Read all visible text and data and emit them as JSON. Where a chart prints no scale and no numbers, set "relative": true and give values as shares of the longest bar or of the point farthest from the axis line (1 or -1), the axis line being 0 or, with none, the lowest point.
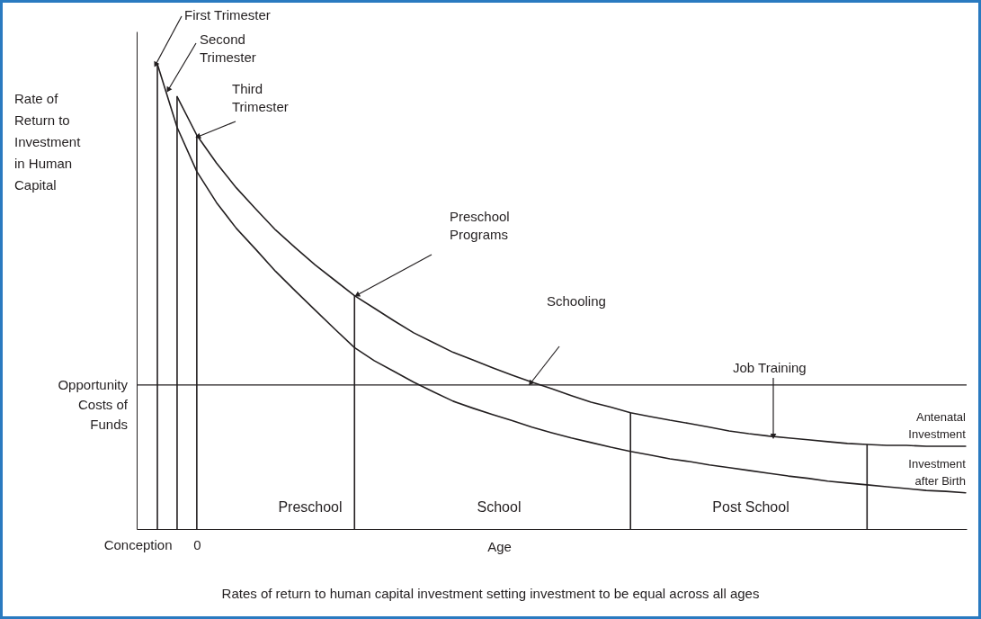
{
  "chart_data": {
    "type": "line",
    "relative": true,
    "ylabel": "Rate of Return to Investment in Human Capital",
    "xlabel": "Age",
    "marker": "none",
    "line_style": "solid",
    "grid": false,
    "categories": [
      "Conception",
      null,
      null,
      "0",
      null,
      null,
      null,
      null,
      null,
      null,
      null,
      null,
      null,
      null,
      null,
      null,
      null,
      null,
      null,
      null,
      null,
      null,
      null,
      null,
      null,
      null,
      null,
      null,
      null,
      null,
      null,
      null,
      null,
      null,
      null,
      null,
      null,
      null,
      null,
      null,
      null,
      null,
      null
    ],
    "series": [
      {
        "name": "Antenatal Investment",
        "color": "#231f20",
        "values": [
          null,
          null,
          0.93,
          0.847,
          0.787,
          0.734,
          0.688,
          0.643,
          0.605,
          0.568,
          0.535,
          0.502,
          0.475,
          0.448,
          0.422,
          0.401,
          0.38,
          0.364,
          0.347,
          0.331,
          0.316,
          0.302,
          0.287,
          0.273,
          0.262,
          0.25,
          0.242,
          0.234,
          0.227,
          0.219,
          0.211,
          0.205,
          0.2,
          0.196,
          0.192,
          0.188,
          0.184,
          0.182,
          0.18,
          0.18,
          0.178,
          0.178,
          0.178
        ]
      },
      {
        "name": "Investment after Birth",
        "color": "#231f20",
        "values": [
          null,
          1.0,
          0.864,
          0.769,
          0.702,
          0.647,
          0.601,
          0.554,
          0.512,
          0.471,
          0.43,
          0.39,
          0.362,
          0.339,
          0.316,
          0.295,
          0.275,
          0.26,
          0.246,
          0.233,
          0.219,
          0.207,
          0.196,
          0.186,
          0.176,
          0.167,
          0.159,
          0.151,
          0.145,
          0.138,
          0.132,
          0.126,
          0.12,
          0.114,
          0.109,
          0.103,
          0.099,
          0.095,
          0.091,
          0.087,
          0.083,
          0.081,
          0.078
        ]
      },
      {
        "type": "bar",
        "color": "#231f20",
        "values": [
          null,
          1.0,
          0.93,
          0.847,
          null,
          null,
          null,
          null,
          null,
          null,
          null,
          0.502,
          null,
          null,
          null,
          null,
          null,
          null,
          null,
          null,
          null,
          null,
          null,
          null,
          null,
          0.25,
          null,
          null,
          null,
          null,
          null,
          null,
          null,
          null,
          null,
          null,
          null,
          0.182,
          null,
          null,
          null,
          null,
          null
        ]
      }
    ],
    "ref_lines": [
      {
        "axis": "y",
        "value": 0.31,
        "label": "Opportunity Costs of Funds"
      }
    ],
    "annotations": [
      "First Trimester",
      "Second Trimester",
      "Third Trimester",
      "Preschool Programs",
      "Schooling",
      "Job Training",
      "Preschool",
      "School",
      "Post School",
      "Rates of return to human capital investment setting investment to be equal across all ages"
    ]
  }
}
